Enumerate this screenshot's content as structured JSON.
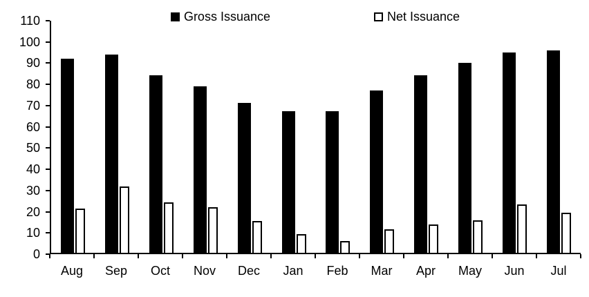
{
  "chart_data": {
    "type": "bar",
    "categories": [
      "Aug",
      "Sep",
      "Oct",
      "Nov",
      "Dec",
      "Jan",
      "Feb",
      "Mar",
      "Apr",
      "May",
      "Jun",
      "Jul"
    ],
    "series": [
      {
        "name": "Gross Issuance",
        "style": "filled-black",
        "color": "#000000",
        "values": [
          92,
          94,
          84,
          79,
          71,
          67,
          67,
          77,
          84,
          90,
          95,
          96
        ]
      },
      {
        "name": "Net Issuance",
        "style": "outlined-white",
        "color": "#ffffff",
        "border_color": "#000000",
        "values": [
          21,
          31.5,
          24,
          21.5,
          15,
          9,
          5.5,
          11,
          13.5,
          15.5,
          23,
          19
        ]
      }
    ],
    "title": "",
    "xlabel": "",
    "ylabel": "",
    "ylim": [
      0,
      110
    ],
    "ytick_step": 10,
    "yticks": [
      0,
      10,
      20,
      30,
      40,
      50,
      60,
      70,
      80,
      90,
      100,
      110
    ],
    "grid": false,
    "legend_position": "top-inside"
  }
}
